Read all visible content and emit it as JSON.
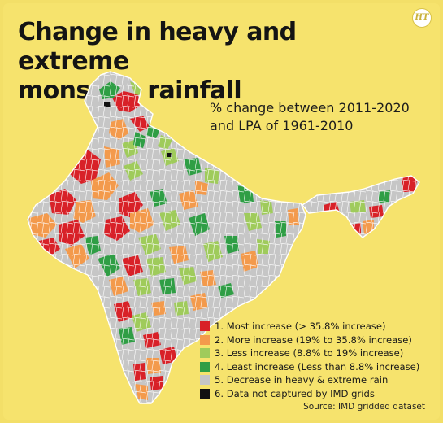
{
  "header": {
    "title_line1": "Change in heavy and extreme",
    "title_line2": "monsoon rainfall",
    "logo_text": "HT"
  },
  "subtitle": {
    "line1": "% change between 2011-2020",
    "line2": "and LPA of 1961-2010"
  },
  "legend": {
    "items": [
      {
        "label": "1. Most increase (> 35.8% increase)",
        "color": "#d82128"
      },
      {
        "label": "2. More increase (19% to 35.8% increase)",
        "color": "#f39a4c"
      },
      {
        "label": "3. Less increase (8.8% to 19% increase)",
        "color": "#9fcb5b"
      },
      {
        "label": "4. Least increase (Less than 8.8% increase)",
        "color": "#2f9e45"
      },
      {
        "label": "5. Decrease in heavy & extreme rain",
        "color": "#c6c6c6"
      },
      {
        "label": "6. Data not captured by IMD grids",
        "color": "#111111"
      }
    ]
  },
  "source": "Source: IMD gridded dataset",
  "map": {
    "name": "India district map",
    "background_color": "#c6c6c6",
    "border_color": "#ffffff"
  }
}
